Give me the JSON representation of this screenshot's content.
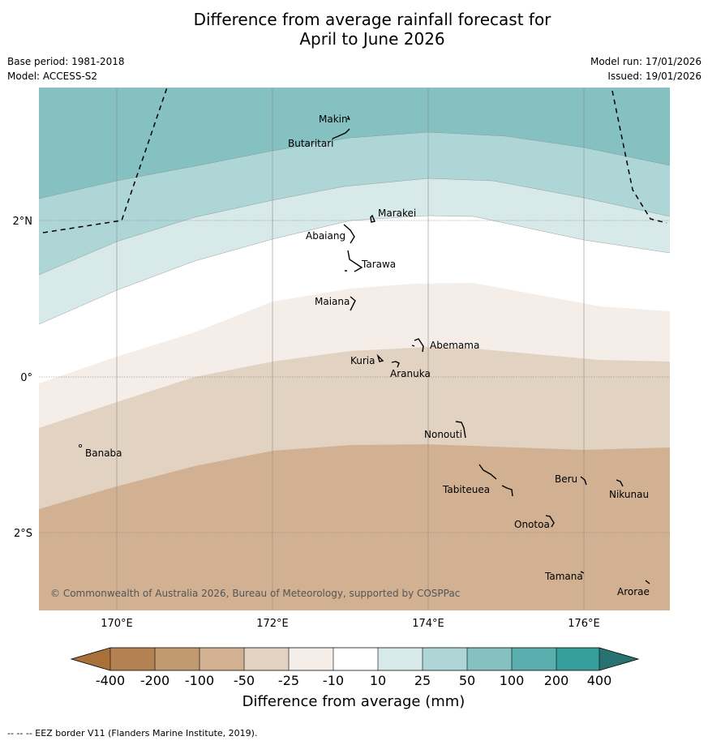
{
  "header": {
    "title_line1": "Difference from average rainfall forecast for",
    "title_line2": "April to June 2026"
  },
  "meta": {
    "base_period": "Base period: 1981-2018",
    "model": "Model: ACCESS-S2",
    "model_run": "Model run: 17/01/2026",
    "issued": "Issued: 19/01/2026"
  },
  "map": {
    "latitude_ticks": [
      "2°N",
      "0°",
      "2°S"
    ],
    "longitude_ticks": [
      "170°E",
      "172°E",
      "174°E",
      "176°E"
    ],
    "islands": [
      "Makin",
      "Butaritari",
      "Marakei",
      "Abaiang",
      "Tarawa",
      "Maiana",
      "Abemama",
      "Kuria",
      "Aranuka",
      "Nonouti",
      "Banaba",
      "Beru",
      "Nikunau",
      "Tabiteuea",
      "Onotoa",
      "Tamana",
      "Arorae"
    ],
    "copyright": "© Commonwealth of Australia 2026, Bureau of Meteorology, supported by COSPPac"
  },
  "colorbar": {
    "labels": [
      "-400",
      "-200",
      "-100",
      "-50",
      "-25",
      "-10",
      "10",
      "25",
      "50",
      "100",
      "200",
      "400"
    ],
    "colors": [
      "#a8713a",
      "#b48153",
      "#c19a70",
      "#d1b192",
      "#e2d2c2",
      "#f4ede8",
      "#ffffff",
      "#d7e9e9",
      "#afd6d6",
      "#86c1c1",
      "#5aaeae",
      "#359e9b",
      "#287371"
    ],
    "title": "Difference from average (mm)"
  },
  "footer": {
    "legend": "--  --  -- EEZ border V11 (Flanders Marine Institute, 2019)."
  }
}
